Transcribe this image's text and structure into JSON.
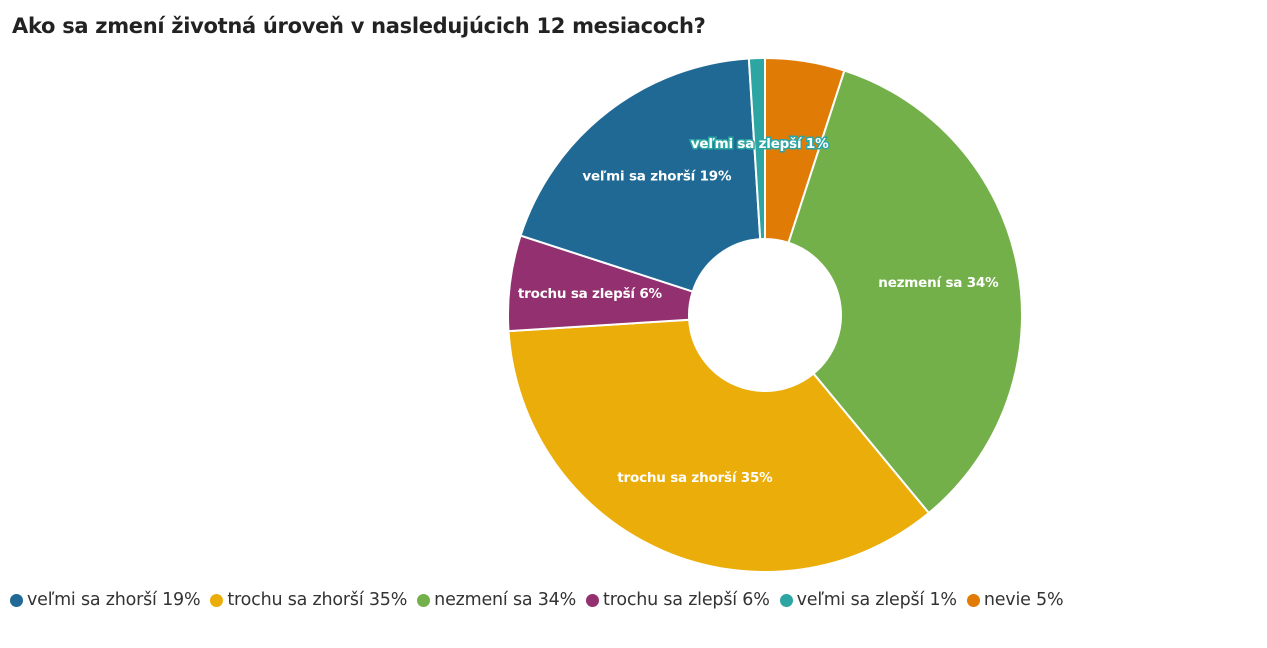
{
  "title": "Ako sa zmení životná úroveň v nasledujúcich 12 mesiacoch?",
  "chart_data": {
    "type": "pie",
    "variant": "donut",
    "title": "Ako sa zmení životná úroveň v nasledujúcich 12 mesiacoch?",
    "legend_position": "bottom-left",
    "slices": [
      {
        "name": "nevie 5%",
        "short": "nevie",
        "value": 5,
        "color": "#e07b05",
        "label": ""
      },
      {
        "name": "nezmení sa 34%",
        "short": "nezmení sa",
        "value": 34,
        "color": "#74b04a",
        "label": "nezmení sa 34%"
      },
      {
        "name": "trochu sa zhorší 35%",
        "short": "trochu sa zhorší",
        "value": 35,
        "color": "#ebad09",
        "label": "trochu sa zhorší 35%"
      },
      {
        "name": "trochu sa zlepší 6%",
        "short": "trochu sa zlepší",
        "value": 6,
        "color": "#93306f",
        "label": "trochu sa zlepší 6%"
      },
      {
        "name": "veľmi sa zhorší 19%",
        "short": "veľmi sa zhorší",
        "value": 19,
        "color": "#1f6994",
        "label": "veľmi sa zhorší 19%"
      },
      {
        "name": "veľmi sa zlepší 1%",
        "short": "veľmi sa zlepší",
        "value": 1,
        "color": "#2ca5a3",
        "label": "veľmi sa zlepší 1%"
      }
    ],
    "legend": [
      {
        "label": "veľmi sa zhorší 19%",
        "color": "#1f6994"
      },
      {
        "label": "trochu sa zhorší 35%",
        "color": "#ebad09"
      },
      {
        "label": "nezmení sa 34%",
        "color": "#74b04a"
      },
      {
        "label": "trochu sa zlepší 6%",
        "color": "#93306f"
      },
      {
        "label": "veľmi sa zlepší 1%",
        "color": "#2ca5a3"
      },
      {
        "label": "nevie 5%",
        "color": "#e07b05"
      }
    ]
  }
}
